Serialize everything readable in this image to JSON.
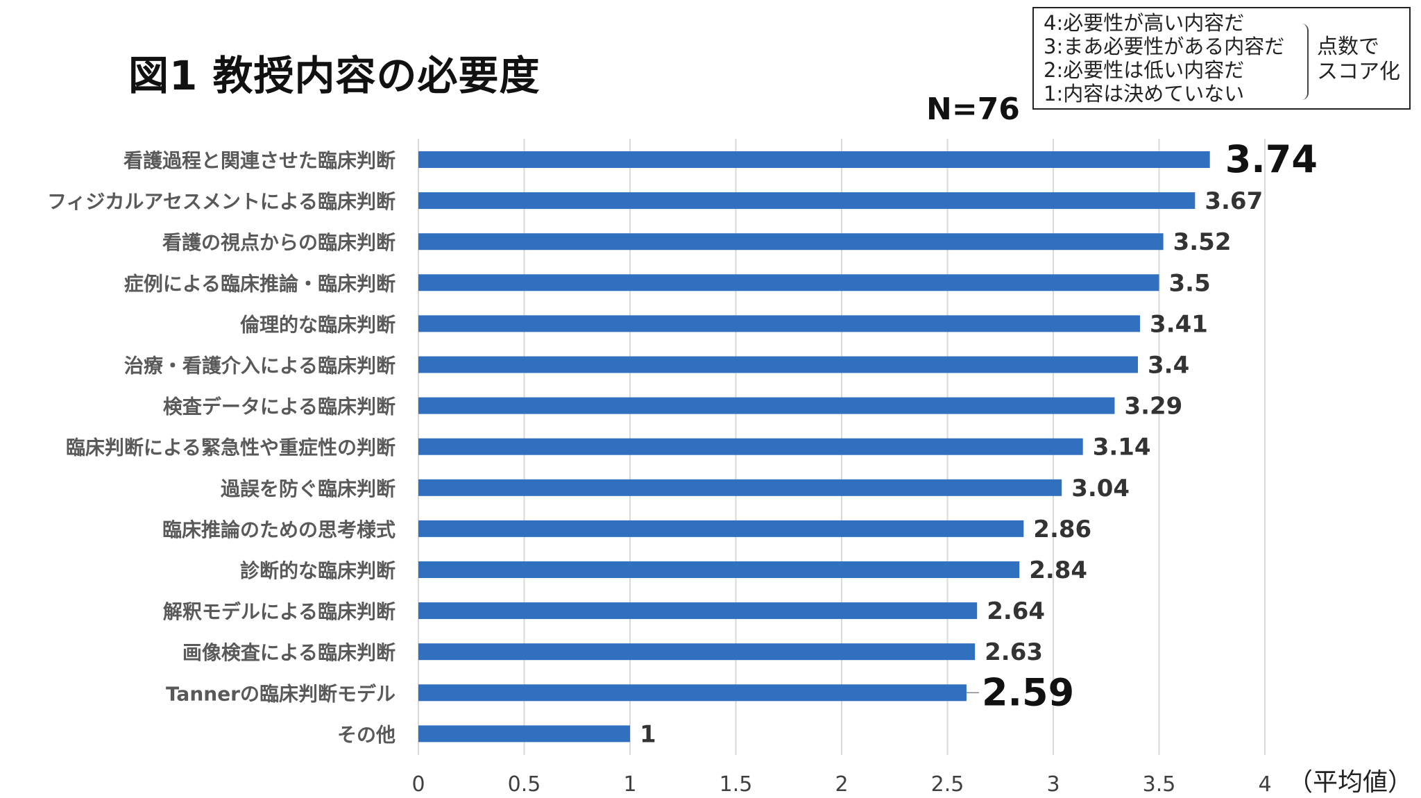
{
  "chart_data": {
    "type": "bar",
    "orientation": "horizontal",
    "title": "図1 教授内容の必要度",
    "sample_label": "N=76",
    "unit_label": "（平均値）",
    "categories": [
      "看護過程と関連させた臨床判断",
      "フィジカルアセスメントによる臨床判断",
      "看護の視点からの臨床判断",
      "症例による臨床推論・臨床判断",
      "倫理的な臨床判断",
      "治療・看護介入による臨床判断",
      "検査データによる臨床判断",
      "臨床判断による緊急性や重症性の判断",
      "過誤を防ぐ臨床判断",
      "臨床推論のための思考様式",
      "診断的な臨床判断",
      "解釈モデルによる臨床判断",
      "画像検査による臨床判断",
      "Tannerの臨床判断モデル",
      "その他"
    ],
    "values": [
      3.74,
      3.67,
      3.52,
      3.5,
      3.41,
      3.4,
      3.29,
      3.14,
      3.04,
      2.86,
      2.84,
      2.64,
      2.63,
      2.59,
      1
    ],
    "value_labels": [
      "3.74",
      "3.67",
      "3.52",
      "3.5",
      "3.41",
      "3.4",
      "3.29",
      "3.14",
      "3.04",
      "2.86",
      "2.84",
      "2.64",
      "2.63",
      "2.59",
      "1"
    ],
    "emphasized_labels": [
      "3.74",
      "2.59"
    ],
    "xlim": [
      0,
      4
    ],
    "x_ticks": [
      0,
      0.5,
      1,
      1.5,
      2,
      2.5,
      3,
      3.5,
      4
    ],
    "x_tick_labels": [
      "0",
      "0.5",
      "1",
      "1.5",
      "2",
      "2.5",
      "3",
      "3.5",
      "4"
    ],
    "grid": "vertical",
    "bar_color": "#3070BE",
    "grid_color": "#D9D9D9",
    "label_color": "#595959",
    "value_color": "#333333"
  },
  "legend": {
    "lines": [
      "4:必要性が高い内容だ",
      "3:まあ必要性がある内容だ",
      "2:必要性は低い内容だ",
      "1:内容は決めていない"
    ],
    "note_line1": "点数で",
    "note_line2": "スコア化"
  }
}
